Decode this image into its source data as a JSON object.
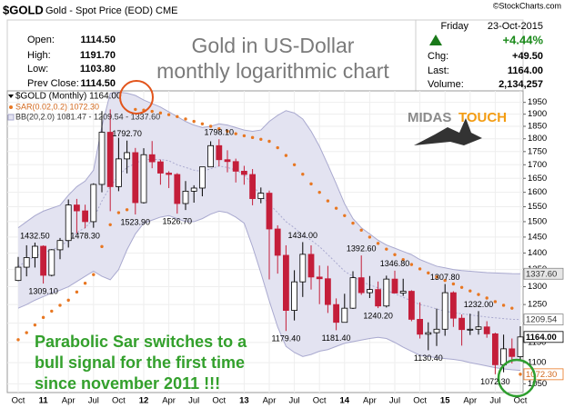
{
  "header": {
    "symbol": "$GOLD",
    "description": "Gold - Spot Price (EOD) CME",
    "credit": "©StockCharts.com",
    "title_lines": [
      "Gold in US-Dollar",
      "monthly logarithmic chart"
    ],
    "stats": [
      {
        "label": "Open:",
        "value": "1114.50"
      },
      {
        "label": "High:",
        "value": "1191.70"
      },
      {
        "label": "Low:",
        "value": "1103.80"
      },
      {
        "label": "Prev Close:",
        "value": "1114.50"
      }
    ],
    "quote": {
      "day": "Friday",
      "date": "23-Oct-2015",
      "change_pct": "+4.44%",
      "rows": [
        {
          "label": "Chg:",
          "value": "+49.50"
        },
        {
          "label": "Last:",
          "value": "1164.00"
        },
        {
          "label": "Volume:",
          "value": "2,134,257"
        }
      ]
    }
  },
  "logo": {
    "left": "MIDAS",
    "right": "TOUCH"
  },
  "annotation_lines": [
    "Parabolic Sar switches to a",
    "bull signal for the first time",
    "since november 2011 !!!"
  ],
  "chart_data": {
    "type": "candlestick",
    "legend": {
      "price": "$GOLD (Monthly) 1164.00",
      "sar": "SAR(0.02,0.2) 1072.30",
      "bb": "BB(20,2.0) 1081.47 - 1209.54 - 1337.60"
    },
    "categories": [
      "Oct",
      null,
      null,
      "11",
      null,
      null,
      "Apr",
      null,
      null,
      "Jul",
      null,
      null,
      "Oct",
      null,
      null,
      "12",
      null,
      null,
      "Apr",
      null,
      null,
      "Jul",
      null,
      null,
      "Oct",
      null,
      null,
      "13",
      null,
      null,
      "Apr",
      null,
      null,
      "Jul",
      null,
      null,
      "Oct",
      null,
      null,
      "14",
      null,
      null,
      "Apr",
      null,
      null,
      "Jul",
      null,
      null,
      "Oct",
      null,
      null,
      "15",
      null,
      null,
      "Apr",
      null,
      null,
      "Jul",
      null,
      null,
      "Oct"
    ],
    "open": [
      1318,
      1357,
      1386,
      1421,
      1333,
      1410,
      1439,
      1556,
      1536,
      1500,
      1628,
      1826,
      1620,
      1722,
      1746,
      1564,
      1738,
      1711,
      1669,
      1664,
      1561,
      1604,
      1615,
      1692,
      1773,
      1719,
      1712,
      1676,
      1664,
      1578,
      1597,
      1476,
      1393,
      1234,
      1314,
      1396,
      1328,
      1323,
      1250,
      1202,
      1240,
      1326,
      1283,
      1292,
      1246,
      1322,
      1282,
      1287,
      1210,
      1171,
      1175,
      1184,
      1283,
      1213,
      1183,
      1184,
      1190,
      1172,
      1095,
      1134,
      1114.5
    ],
    "high": [
      1388,
      1424,
      1432.5,
      1424,
      1412,
      1447,
      1575,
      1577,
      1557,
      1632,
      1913,
      1920,
      1804,
      1792.7,
      1764,
      1763,
      1791,
      1719,
      1676,
      1669,
      1640,
      1625,
      1692,
      1790,
      1798.1,
      1755,
      1723,
      1696,
      1684,
      1617,
      1606,
      1488,
      1424,
      1348,
      1434,
      1424,
      1362,
      1361,
      1267,
      1280,
      1345,
      1392.6,
      1331,
      1315,
      1332,
      1346.8,
      1323,
      1290,
      1256,
      1202,
      1239,
      1307.8,
      1287,
      1223,
      1225,
      1232,
      1205,
      1175,
      1170,
      1160,
      1191.7
    ],
    "low": [
      1316,
      1330,
      1356,
      1309.1,
      1330,
      1381,
      1417,
      1462,
      1478.3,
      1480,
      1600,
      1535,
      1604,
      1668,
      1523.9,
      1561,
      1687,
      1627,
      1615,
      1526.7,
      1539,
      1564,
      1586,
      1691,
      1694,
      1672,
      1635,
      1627,
      1555,
      1562,
      1321,
      1338,
      1179.4,
      1207,
      1271,
      1292,
      1251,
      1227,
      1181.4,
      1202,
      1238,
      1277,
      1268,
      1240.2,
      1242,
      1282,
      1274,
      1205,
      1160,
      1130.4,
      1141,
      1167,
      1190,
      1142,
      1169,
      1170,
      1162,
      1072.3,
      1077,
      1098,
      1103.8
    ],
    "close": [
      1357,
      1386,
      1421,
      1333,
      1410,
      1439,
      1556,
      1536,
      1500,
      1628,
      1826,
      1620,
      1722,
      1746,
      1564,
      1738,
      1711,
      1669,
      1664,
      1561,
      1604,
      1615,
      1692,
      1773,
      1719,
      1712,
      1676,
      1664,
      1578,
      1597,
      1476,
      1393,
      1234,
      1314,
      1396,
      1328,
      1323,
      1250,
      1202,
      1240,
      1326,
      1283,
      1292,
      1246,
      1322,
      1282,
      1287,
      1210,
      1171,
      1175,
      1184,
      1283,
      1213,
      1183,
      1184,
      1190,
      1172,
      1095,
      1134,
      1115,
      1164
    ],
    "sar": [
      1157,
      1175,
      1195,
      1215,
      1232,
      1248,
      1262,
      1285,
      1310,
      1335,
      1420,
      1490,
      1530,
      1540,
      1920,
      1917,
      1912,
      1905,
      1898,
      1890,
      1880,
      1870,
      1860,
      1850,
      1840,
      1830,
      1820,
      1812,
      1805,
      1798,
      1790,
      1765,
      1735,
      1700,
      1665,
      1630,
      1600,
      1570,
      1545,
      1520,
      1495,
      1472,
      1450,
      1430,
      1412,
      1395,
      1380,
      1365,
      1352,
      1340,
      1328,
      1318,
      1308,
      1298,
      1288,
      1278,
      1268,
      1258,
      1248,
      1240,
      1072.3
    ],
    "bb_upper": [
      1480,
      1500,
      1520,
      1535,
      1545,
      1555,
      1590,
      1620,
      1640,
      1680,
      1850,
      1990,
      1995,
      1990,
      1980,
      1960,
      1945,
      1930,
      1910,
      1890,
      1870,
      1855,
      1845,
      1850,
      1860,
      1855,
      1845,
      1835,
      1830,
      1835,
      1870,
      1895,
      1915,
      1905,
      1880,
      1830,
      1770,
      1700,
      1630,
      1560,
      1510,
      1480,
      1460,
      1440,
      1425,
      1415,
      1405,
      1395,
      1380,
      1370,
      1360,
      1355,
      1350,
      1347,
      1345,
      1343,
      1341,
      1340,
      1339,
      1338,
      1337.6
    ],
    "bb_middle": [
      1360,
      1375,
      1390,
      1400,
      1410,
      1420,
      1440,
      1465,
      1480,
      1510,
      1570,
      1620,
      1660,
      1690,
      1705,
      1720,
      1720,
      1720,
      1715,
      1700,
      1690,
      1680,
      1675,
      1685,
      1695,
      1690,
      1680,
      1665,
      1625,
      1590,
      1560,
      1530,
      1500,
      1480,
      1455,
      1440,
      1420,
      1395,
      1370,
      1345,
      1330,
      1315,
      1305,
      1297,
      1290,
      1280,
      1270,
      1260,
      1250,
      1245,
      1238,
      1232,
      1228,
      1225,
      1222,
      1219,
      1216,
      1214,
      1212,
      1210,
      1209.54
    ],
    "bb_lower": [
      1240,
      1250,
      1262,
      1272,
      1282,
      1290,
      1300,
      1315,
      1330,
      1345,
      1330,
      1320,
      1350,
      1410,
      1460,
      1495,
      1505,
      1515,
      1520,
      1510,
      1500,
      1500,
      1510,
      1525,
      1535,
      1530,
      1515,
      1495,
      1420,
      1340,
      1260,
      1190,
      1140,
      1125,
      1115,
      1120,
      1128,
      1132,
      1140,
      1148,
      1152,
      1156,
      1160,
      1163,
      1160,
      1150,
      1138,
      1128,
      1118,
      1115,
      1112,
      1110,
      1108,
      1105,
      1100,
      1096,
      1092,
      1088,
      1085,
      1083,
      1081.47
    ],
    "high_labels": {
      "2": "1432.50",
      "13": "1792.70",
      "24": "1798.10",
      "34": "1434.00",
      "41": "1392.60",
      "45": "1346.80",
      "51": "1307.80",
      "55": "1232.00"
    },
    "low_labels": {
      "3": "1309.10",
      "8": "1478.30",
      "14": "1523.90",
      "19": "1526.70",
      "32": "1179.40",
      "38": "1181.40",
      "43": "1240.20",
      "49": "1130.40",
      "57": "1072.30"
    },
    "last_labels": {
      "bb_upper": "1337.60",
      "bb_middle": "1209.54",
      "close": "1164.00",
      "sar": "1072.30"
    },
    "colors": {
      "up": "#ffffff",
      "down": "#c41e3a",
      "sar": "#e87722",
      "band": "#a9a9cf",
      "band_fill": "#e3e3f1"
    },
    "log_scale": true,
    "grid": true,
    "ylim": [
      1030,
      2000
    ],
    "yticks": [
      1050,
      1100,
      1150,
      1200,
      1250,
      1300,
      1350,
      1400,
      1450,
      1500,
      1550,
      1600,
      1650,
      1700,
      1750,
      1800,
      1850,
      1900,
      1950
    ]
  }
}
